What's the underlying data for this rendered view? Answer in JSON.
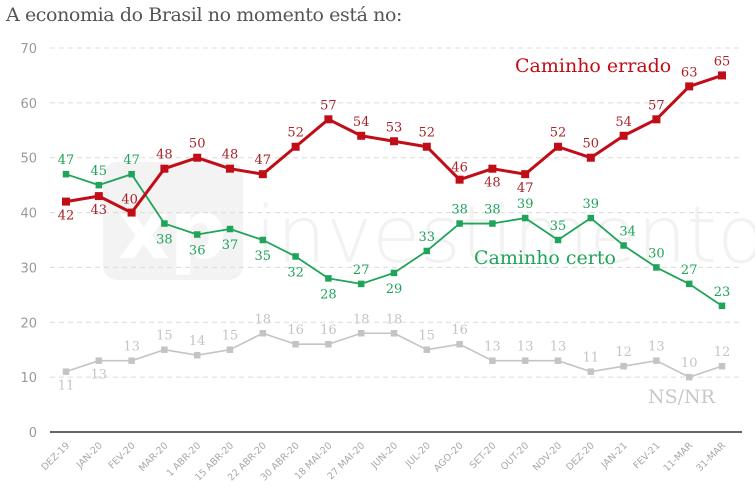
{
  "chart_data": {
    "type": "line",
    "title": "A economia do Brasil no momento está no:",
    "xlabel": "",
    "ylabel": "",
    "ylim": [
      0,
      70
    ],
    "yticks": [
      0,
      10,
      20,
      30,
      40,
      50,
      60,
      70
    ],
    "grid": true,
    "legend": "inline-labels",
    "categories": [
      "DEZ-19",
      "JAN-20",
      "FEV-20",
      "MAR-20",
      "1 ABR-20",
      "15 ABR-20",
      "22 ABR-20",
      "30 ABR-20",
      "18 MAI-20",
      "27 MAI-20",
      "JUN-20",
      "JUL-20",
      "AGO-20",
      "SET-20",
      "OUT-20",
      "NOV-20",
      "DEZ-20",
      "JAN-21",
      "FEV-21",
      "11-MAR",
      "31-MAR"
    ],
    "series": [
      {
        "name": "Caminho errado",
        "color": "#c00d17",
        "values": [
          42,
          43,
          40,
          48,
          50,
          48,
          47,
          52,
          57,
          54,
          53,
          52,
          46,
          48,
          47,
          52,
          50,
          54,
          57,
          63,
          65
        ]
      },
      {
        "name": "Caminho certo",
        "color": "#1fa45a",
        "values": [
          47,
          45,
          47,
          38,
          36,
          37,
          35,
          32,
          28,
          27,
          29,
          33,
          38,
          38,
          39,
          35,
          39,
          34,
          30,
          27,
          23
        ]
      },
      {
        "name": "NS/NR",
        "color": "#c4c4c4",
        "values": [
          11,
          13,
          13,
          15,
          14,
          15,
          18,
          16,
          16,
          18,
          18,
          15,
          16,
          13,
          13,
          13,
          11,
          12,
          13,
          10,
          12
        ]
      }
    ]
  },
  "watermark": {
    "logo": "xp",
    "text": "investimentos"
  }
}
